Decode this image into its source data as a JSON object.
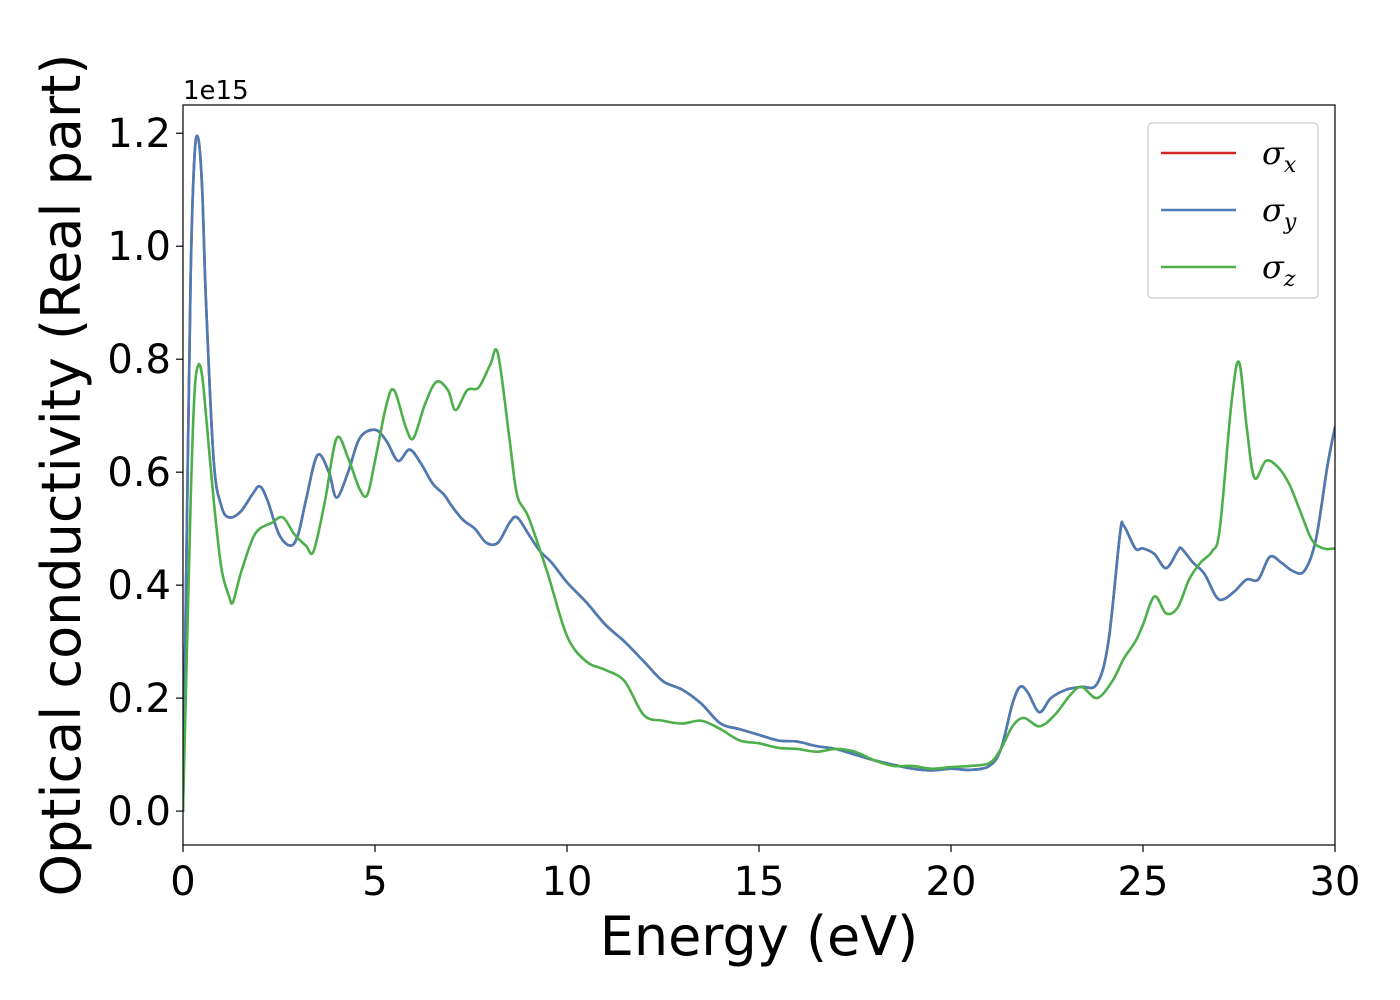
{
  "chart_data": {
    "type": "line",
    "title": "",
    "xlabel": "Energy (eV)",
    "ylabel": "Optical conductivity (Real part)",
    "y_offset_label": "1e15",
    "xlim": [
      0,
      30
    ],
    "ylim": [
      -0.06,
      1.25
    ],
    "xticks": [
      0,
      5,
      10,
      15,
      20,
      25,
      30
    ],
    "xtick_labels": [
      "0",
      "5",
      "10",
      "15",
      "20",
      "25",
      "30"
    ],
    "yticks": [
      0.0,
      0.2,
      0.4,
      0.6,
      0.8,
      1.0,
      1.2
    ],
    "ytick_labels": [
      "0.0",
      "0.2",
      "0.4",
      "0.6",
      "0.8",
      "1.0",
      "1.2"
    ],
    "grid": false,
    "legend_position": "top-right",
    "series": [
      {
        "name": "σx",
        "symbol": "σ",
        "subscript": "x",
        "color": "#d62728",
        "x": [
          0,
          0.1,
          0.2,
          0.3,
          0.4,
          0.5,
          0.6,
          0.8,
          1.0,
          1.2,
          1.5,
          1.8,
          2.0,
          2.2,
          2.5,
          2.8,
          3.0,
          3.2,
          3.5,
          3.8,
          4.0,
          4.3,
          4.6,
          5.0,
          5.3,
          5.6,
          5.9,
          6.2,
          6.5,
          6.8,
          7.0,
          7.3,
          7.6,
          7.9,
          8.2,
          8.5,
          8.7,
          9.0,
          9.3,
          9.6,
          10.0,
          10.5,
          11.0,
          11.5,
          12.0,
          12.5,
          13.0,
          13.5,
          14.0,
          14.5,
          15.0,
          15.5,
          16.0,
          16.5,
          17.0,
          17.5,
          18.0,
          18.5,
          19.0,
          19.5,
          20.0,
          20.5,
          21.0,
          21.3,
          21.6,
          21.8,
          22.0,
          22.3,
          22.6,
          23.0,
          23.4,
          23.8,
          24.1,
          24.4,
          24.5,
          24.8,
          25.0,
          25.3,
          25.6,
          25.9,
          26.0,
          26.3,
          26.6,
          26.9,
          27.1,
          27.4,
          27.7,
          28.0,
          28.3,
          28.6,
          28.9,
          29.2,
          29.5,
          29.8,
          30.0
        ],
        "y": [
          0.0,
          0.5,
          0.95,
          1.16,
          1.19,
          1.1,
          0.9,
          0.62,
          0.54,
          0.52,
          0.53,
          0.56,
          0.575,
          0.55,
          0.49,
          0.47,
          0.49,
          0.55,
          0.63,
          0.6,
          0.555,
          0.6,
          0.66,
          0.675,
          0.655,
          0.62,
          0.64,
          0.615,
          0.58,
          0.56,
          0.54,
          0.515,
          0.5,
          0.475,
          0.475,
          0.51,
          0.52,
          0.49,
          0.46,
          0.44,
          0.405,
          0.37,
          0.33,
          0.3,
          0.265,
          0.23,
          0.215,
          0.19,
          0.155,
          0.145,
          0.135,
          0.125,
          0.123,
          0.115,
          0.11,
          0.1,
          0.09,
          0.082,
          0.075,
          0.072,
          0.075,
          0.073,
          0.08,
          0.11,
          0.19,
          0.22,
          0.21,
          0.175,
          0.2,
          0.215,
          0.22,
          0.225,
          0.3,
          0.49,
          0.505,
          0.465,
          0.465,
          0.455,
          0.43,
          0.46,
          0.465,
          0.44,
          0.42,
          0.38,
          0.375,
          0.39,
          0.41,
          0.41,
          0.45,
          0.44,
          0.425,
          0.425,
          0.48,
          0.61,
          0.68
        ]
      },
      {
        "name": "σy",
        "symbol": "σ",
        "subscript": "y",
        "color": "#4a7cb5",
        "x": [
          0,
          0.1,
          0.2,
          0.3,
          0.4,
          0.5,
          0.6,
          0.8,
          1.0,
          1.2,
          1.5,
          1.8,
          2.0,
          2.2,
          2.5,
          2.8,
          3.0,
          3.2,
          3.5,
          3.8,
          4.0,
          4.3,
          4.6,
          5.0,
          5.3,
          5.6,
          5.9,
          6.2,
          6.5,
          6.8,
          7.0,
          7.3,
          7.6,
          7.9,
          8.2,
          8.5,
          8.7,
          9.0,
          9.3,
          9.6,
          10.0,
          10.5,
          11.0,
          11.5,
          12.0,
          12.5,
          13.0,
          13.5,
          14.0,
          14.5,
          15.0,
          15.5,
          16.0,
          16.5,
          17.0,
          17.5,
          18.0,
          18.5,
          19.0,
          19.5,
          20.0,
          20.5,
          21.0,
          21.3,
          21.6,
          21.8,
          22.0,
          22.3,
          22.6,
          23.0,
          23.4,
          23.8,
          24.1,
          24.4,
          24.5,
          24.8,
          25.0,
          25.3,
          25.6,
          25.9,
          26.0,
          26.3,
          26.6,
          26.9,
          27.1,
          27.4,
          27.7,
          28.0,
          28.3,
          28.6,
          28.9,
          29.2,
          29.5,
          29.8,
          30.0
        ],
        "y": [
          0.0,
          0.5,
          0.95,
          1.16,
          1.19,
          1.1,
          0.9,
          0.62,
          0.54,
          0.52,
          0.53,
          0.56,
          0.575,
          0.55,
          0.49,
          0.47,
          0.49,
          0.55,
          0.63,
          0.6,
          0.555,
          0.6,
          0.66,
          0.675,
          0.655,
          0.62,
          0.64,
          0.615,
          0.58,
          0.56,
          0.54,
          0.515,
          0.5,
          0.475,
          0.475,
          0.51,
          0.52,
          0.49,
          0.46,
          0.44,
          0.405,
          0.37,
          0.33,
          0.3,
          0.265,
          0.23,
          0.215,
          0.19,
          0.155,
          0.145,
          0.135,
          0.125,
          0.123,
          0.115,
          0.11,
          0.1,
          0.09,
          0.082,
          0.075,
          0.072,
          0.075,
          0.073,
          0.08,
          0.11,
          0.19,
          0.22,
          0.21,
          0.175,
          0.2,
          0.215,
          0.22,
          0.225,
          0.3,
          0.49,
          0.505,
          0.465,
          0.465,
          0.455,
          0.43,
          0.46,
          0.465,
          0.44,
          0.42,
          0.38,
          0.375,
          0.39,
          0.41,
          0.41,
          0.45,
          0.44,
          0.425,
          0.425,
          0.48,
          0.61,
          0.68
        ]
      },
      {
        "name": "σz",
        "symbol": "σ",
        "subscript": "z",
        "color": "#4daf4a",
        "x": [
          0,
          0.2,
          0.3,
          0.4,
          0.5,
          0.6,
          0.8,
          1.0,
          1.2,
          1.3,
          1.5,
          1.8,
          2.0,
          2.3,
          2.6,
          2.9,
          3.2,
          3.4,
          3.7,
          4.0,
          4.3,
          4.6,
          4.8,
          5.0,
          5.3,
          5.5,
          5.8,
          6.0,
          6.3,
          6.6,
          6.9,
          7.1,
          7.4,
          7.7,
          8.0,
          8.2,
          8.5,
          8.7,
          9.0,
          9.5,
          10.0,
          10.5,
          11.0,
          11.5,
          12.0,
          12.5,
          13.0,
          13.5,
          14.0,
          14.5,
          15.0,
          15.5,
          16.0,
          16.5,
          17.0,
          17.5,
          18.0,
          18.5,
          19.0,
          19.5,
          20.0,
          20.5,
          21.0,
          21.3,
          21.6,
          21.9,
          22.3,
          22.7,
          23.1,
          23.4,
          23.8,
          24.2,
          24.5,
          24.8,
          25.0,
          25.3,
          25.6,
          25.9,
          26.2,
          26.5,
          26.8,
          27.0,
          27.3,
          27.5,
          27.7,
          27.9,
          28.2,
          28.5,
          28.8,
          29.1,
          29.4,
          29.7,
          30.0
        ],
        "y": [
          0.0,
          0.55,
          0.74,
          0.79,
          0.77,
          0.7,
          0.55,
          0.43,
          0.38,
          0.37,
          0.42,
          0.48,
          0.5,
          0.51,
          0.52,
          0.49,
          0.47,
          0.46,
          0.55,
          0.66,
          0.625,
          0.57,
          0.56,
          0.62,
          0.72,
          0.745,
          0.68,
          0.66,
          0.72,
          0.76,
          0.745,
          0.71,
          0.745,
          0.75,
          0.79,
          0.81,
          0.66,
          0.56,
          0.52,
          0.42,
          0.31,
          0.265,
          0.25,
          0.23,
          0.17,
          0.16,
          0.155,
          0.16,
          0.145,
          0.125,
          0.12,
          0.112,
          0.11,
          0.105,
          0.11,
          0.105,
          0.09,
          0.08,
          0.08,
          0.075,
          0.078,
          0.08,
          0.085,
          0.11,
          0.15,
          0.165,
          0.15,
          0.17,
          0.205,
          0.22,
          0.2,
          0.23,
          0.27,
          0.3,
          0.33,
          0.38,
          0.35,
          0.36,
          0.41,
          0.44,
          0.46,
          0.5,
          0.72,
          0.795,
          0.68,
          0.59,
          0.62,
          0.61,
          0.58,
          0.53,
          0.48,
          0.465,
          0.465
        ]
      }
    ]
  }
}
